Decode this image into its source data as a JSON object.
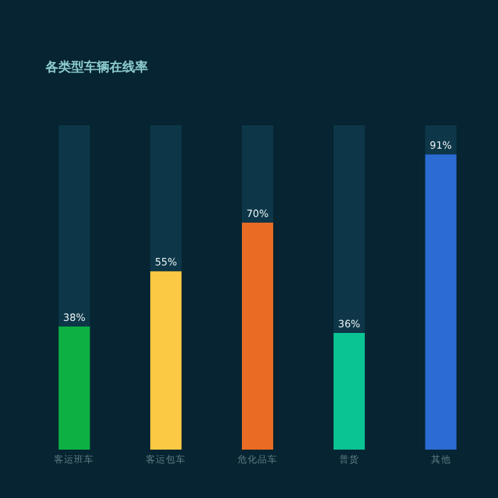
{
  "chart_data": {
    "type": "bar",
    "title": "各类型车辆在线率",
    "stacked": true,
    "ylim": [
      0,
      100
    ],
    "tick_labels": "x",
    "categories": [
      "客运班车",
      "客运包车",
      "危化品车",
      "普货",
      "其他"
    ],
    "series": [
      {
        "colors": [
          "#0db143",
          "#fbc943",
          "#ea6c24",
          "#0ac493",
          "#2b6bd3"
        ],
        "values": [
          38,
          55,
          70,
          36,
          91
        ],
        "value_labels": [
          "38%",
          "55%",
          "70%",
          "36%",
          "91%"
        ]
      },
      {
        "color": "#0d3748",
        "values": [
          62,
          45,
          30,
          64,
          9
        ]
      }
    ]
  }
}
